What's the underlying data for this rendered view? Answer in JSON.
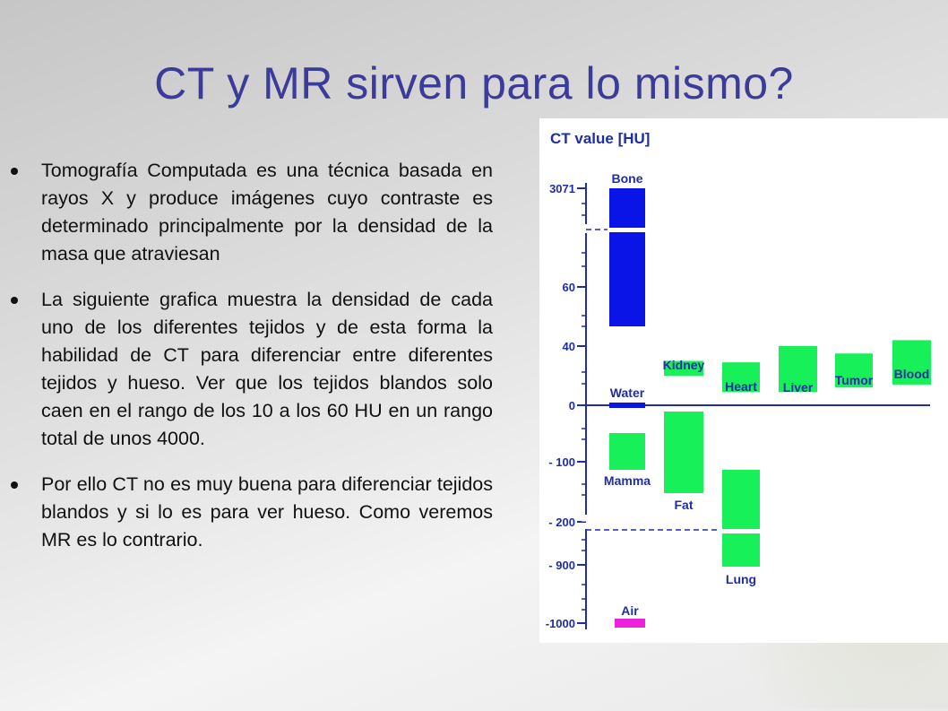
{
  "slide": {
    "title": "CT y MR sirven para lo mismo?",
    "bullets": [
      "Tomografía Computada es una técnica basada en rayos X y produce imágenes cuyo contraste es determinado principalmente por la densidad de la masa que atraviesan",
      "La siguiente grafica muestra la densidad de cada uno de los diferentes tejidos y de esta forma la habilidad de CT para diferenciar entre diferentes tejidos y hueso. Ver que los tejidos blandos solo caen en el rango de los 10 a los 60 HU en un rango total de unos 4000.",
      "Por ello CT no es muy buena para diferenciar tejidos blandos y si lo es para ver hueso. Como veremos MR es lo contrario."
    ]
  },
  "chart_data": {
    "type": "bar",
    "ylabel": "CT value [HU]",
    "y_ticks": [
      "3071",
      "60",
      "40",
      "0",
      "- 100",
      "- 200",
      "- 900",
      "-1000"
    ],
    "axis_break": "non-linear y axis with breaks between 3071/60 and -200/-900",
    "colors": {
      "bone": "#0a14e6",
      "soft": "#18f05a",
      "air": "#ee22dd",
      "axis": "#1f2ea8"
    },
    "ranges": [
      {
        "name": "Bone",
        "min": 250,
        "max": 3071,
        "color": "#0a14e6"
      },
      {
        "name": "Kidney",
        "min": 20,
        "max": 30,
        "color": "#18f05a"
      },
      {
        "name": "Heart",
        "min": 9,
        "max": 29,
        "color": "#18f05a"
      },
      {
        "name": "Liver",
        "min": 9,
        "max": 40,
        "color": "#18f05a"
      },
      {
        "name": "Tumor",
        "min": 12,
        "max": 35,
        "color": "#18f05a"
      },
      {
        "name": "Blood",
        "min": 14,
        "max": 42,
        "color": "#18f05a"
      },
      {
        "name": "Water",
        "min": -3,
        "max": 3,
        "color": "#0a14e6"
      },
      {
        "name": "Mamma",
        "min": -115,
        "max": -50,
        "color": "#18f05a"
      },
      {
        "name": "Fat",
        "min": -150,
        "max": -10,
        "color": "#18f05a"
      },
      {
        "name": "Lung",
        "min": -930,
        "max": -110,
        "color": "#18f05a"
      },
      {
        "name": "Air",
        "min": -1000,
        "max": -1000,
        "color": "#ee22dd"
      }
    ]
  }
}
